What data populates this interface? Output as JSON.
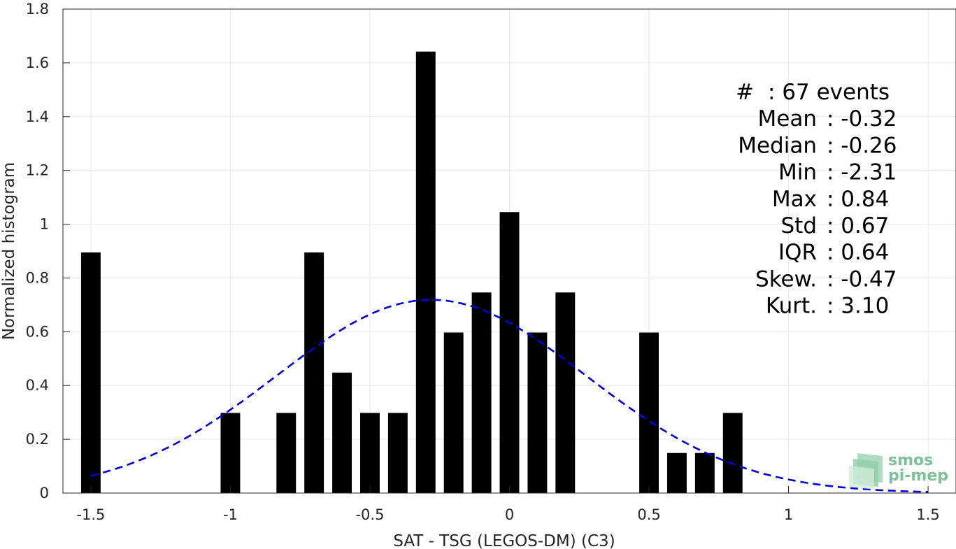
{
  "chart_data": {
    "type": "bar",
    "xlabel": "SAT - TSG (LEGOS-DM) (C3)",
    "ylabel": "Normalized histogram",
    "xlim": [
      -1.6,
      1.6
    ],
    "ylim": [
      0,
      1.8
    ],
    "xticks": [
      "-1.5",
      "-1",
      "-0.5",
      "0",
      "0.5",
      "1",
      "1.5"
    ],
    "xtick_values": [
      -1.5,
      -1,
      -0.5,
      0,
      0.5,
      1,
      1.5
    ],
    "yticks": [
      "0",
      "0.2",
      "0.4",
      "0.6",
      "0.8",
      "1",
      "1.2",
      "1.4",
      "1.6",
      "1.8"
    ],
    "ytick_values": [
      0,
      0.2,
      0.4,
      0.6,
      0.8,
      1,
      1.2,
      1.4,
      1.6,
      1.8
    ],
    "grid": true,
    "bar_color": "#000000",
    "bin_width": 0.1,
    "bars": [
      {
        "x": -1.5,
        "y": 0.895
      },
      {
        "x": -1.0,
        "y": 0.298
      },
      {
        "x": -0.8,
        "y": 0.298
      },
      {
        "x": -0.7,
        "y": 0.895
      },
      {
        "x": -0.6,
        "y": 0.448
      },
      {
        "x": -0.5,
        "y": 0.298
      },
      {
        "x": -0.4,
        "y": 0.298
      },
      {
        "x": -0.3,
        "y": 1.642
      },
      {
        "x": -0.2,
        "y": 0.597
      },
      {
        "x": -0.1,
        "y": 0.746
      },
      {
        "x": 0.0,
        "y": 1.045
      },
      {
        "x": 0.1,
        "y": 0.597
      },
      {
        "x": 0.2,
        "y": 0.746
      },
      {
        "x": 0.5,
        "y": 0.597
      },
      {
        "x": 0.6,
        "y": 0.149
      },
      {
        "x": 0.7,
        "y": 0.149
      },
      {
        "x": 0.8,
        "y": 0.298
      }
    ],
    "fit_curve": {
      "style": "dashed",
      "color": "#0000dd",
      "mean": -0.28,
      "std": 0.555,
      "x_range": [
        -1.5,
        1.5
      ]
    },
    "stats": [
      "#  : 67 events",
      "Mean : -0.32",
      "Median : -0.26",
      "Min : -2.31",
      "Max : 0.84",
      "Std : 0.67",
      "IQR : 0.64",
      "Skew. : -0.47",
      "Kurt. : 3.10"
    ]
  },
  "logo": {
    "line1": "smos",
    "line2": "pi-mep"
  }
}
